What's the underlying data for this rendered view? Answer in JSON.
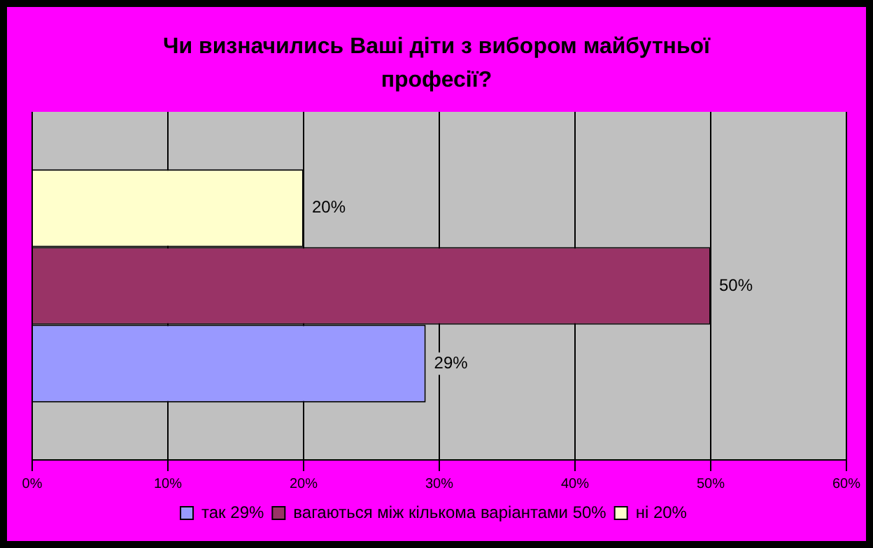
{
  "chart_data": {
    "type": "bar",
    "orientation": "horizontal",
    "title": "Чи визначились Ваші діти з вибором майбутньої професії?",
    "categories": [
      null
    ],
    "series": [
      {
        "name": "так 29%",
        "color": "#9999ff",
        "values": [
          29
        ],
        "value_labels": [
          "29%"
        ]
      },
      {
        "name": "вагаються між кількома варіантами 50%",
        "color": "#993366",
        "values": [
          50
        ],
        "value_labels": [
          "50%"
        ]
      },
      {
        "name": "ні 20%",
        "color": "#ffffcc",
        "values": [
          20
        ],
        "value_labels": [
          "20%"
        ]
      }
    ],
    "xlim": [
      0,
      60
    ],
    "xticks": [
      {
        "value": 0,
        "label": "0%"
      },
      {
        "value": 10,
        "label": "10%"
      },
      {
        "value": 20,
        "label": "20%"
      },
      {
        "value": 30,
        "label": "30%"
      },
      {
        "value": 40,
        "label": "40%"
      },
      {
        "value": 50,
        "label": "50%"
      },
      {
        "value": 60,
        "label": "60%"
      }
    ],
    "grid": "x",
    "legend": "bottom"
  }
}
